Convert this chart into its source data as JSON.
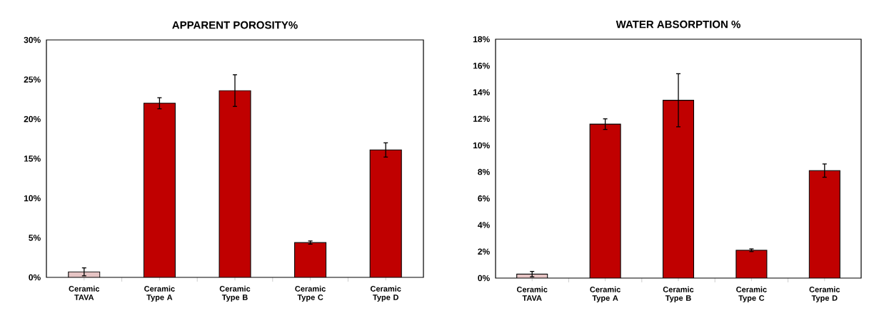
{
  "chart_data": [
    {
      "type": "bar",
      "title": "APPARENT POROSITY%",
      "categories": [
        "Ceramic TAVA",
        "Ceramic Type A",
        "Ceramic Type B",
        "Ceramic Type C",
        "Ceramic Type D"
      ],
      "values": [
        0.7,
        22.0,
        23.6,
        4.4,
        16.1
      ],
      "errors": [
        0.5,
        0.7,
        2.0,
        0.2,
        0.9
      ],
      "colors": [
        "#e6c4c4",
        "#c00000",
        "#c00000",
        "#c00000",
        "#c00000"
      ],
      "ylim": [
        0,
        30
      ],
      "yticks": [
        {
          "value": 0,
          "label": "0%"
        },
        {
          "value": 5,
          "label": "5%"
        },
        {
          "value": 10,
          "label": "10%"
        },
        {
          "value": 15,
          "label": "15%"
        },
        {
          "value": 20,
          "label": "20%"
        },
        {
          "value": 25,
          "label": "25%"
        },
        {
          "value": 30,
          "label": "30%"
        }
      ]
    },
    {
      "type": "bar",
      "title": "WATER ABSORPTION %",
      "categories": [
        "Ceramic TAVA",
        "Ceramic Type A",
        "Ceramic Type B",
        "Ceramic Type C",
        "Ceramic Type D"
      ],
      "values": [
        0.3,
        11.6,
        13.4,
        2.1,
        8.1
      ],
      "errors": [
        0.2,
        0.4,
        2.0,
        0.1,
        0.5
      ],
      "colors": [
        "#e6c4c4",
        "#c00000",
        "#c00000",
        "#c00000",
        "#c00000"
      ],
      "ylim": [
        0,
        18
      ],
      "yticks": [
        {
          "value": 0,
          "label": "0%"
        },
        {
          "value": 2,
          "label": "2%"
        },
        {
          "value": 4,
          "label": "4%"
        },
        {
          "value": 6,
          "label": "6%"
        },
        {
          "value": 8,
          "label": "8%"
        },
        {
          "value": 10,
          "label": "10%"
        },
        {
          "value": 12,
          "label": "12%"
        },
        {
          "value": 14,
          "label": "14%"
        },
        {
          "value": 16,
          "label": "16%"
        },
        {
          "value": 18,
          "label": "18%"
        }
      ]
    }
  ]
}
